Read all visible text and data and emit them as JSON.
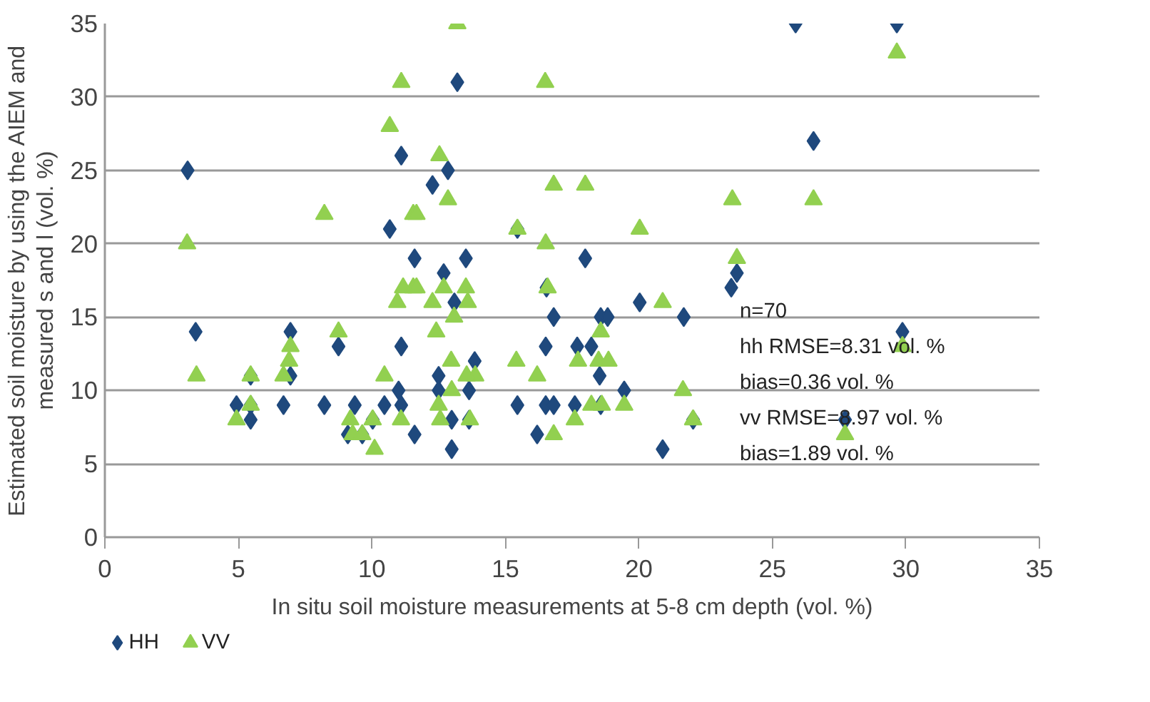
{
  "chart_data": {
    "type": "scatter",
    "xlabel": "In situ soil moisture measurements at 5-8 cm depth (vol. %)",
    "ylabel": "Estimated soil moisture by using the AIEM and measured s and l (vol. %)",
    "xlim": [
      0,
      35
    ],
    "ylim": [
      0,
      35
    ],
    "xticks": [
      0,
      5,
      10,
      15,
      20,
      25,
      30,
      35
    ],
    "yticks": [
      0,
      5,
      10,
      15,
      20,
      25,
      30,
      35
    ],
    "grid": "y",
    "legend": "bottom left",
    "annotations": [
      "n=70",
      "hh RMSE=8.31 vol. %",
      "bias=0.36 vol. %",
      "vv RMSE=8.97 vol. %",
      "bias=1.89 vol. %"
    ],
    "series": [
      {
        "name": "HH",
        "color": "#1f497d",
        "marker": "diamond",
        "x": [
          3.1,
          3.4,
          6.95,
          8.75,
          10.67,
          5.46,
          6.95,
          4.93,
          5.46,
          5.46,
          6.69,
          8.22,
          9.36,
          10.47,
          10.03,
          9.1,
          9.64,
          11.1,
          11.1,
          11.6,
          11.1,
          11.0,
          11.6,
          13.2,
          12.85,
          12.27,
          15.45,
          13.52,
          17.99,
          12.69,
          16.54,
          13.09,
          20.03,
          16.81,
          18.57,
          18.83,
          21.68,
          16.51,
          17.69,
          18.22,
          13.85,
          12.5,
          18.53,
          12.5,
          13.64,
          19.45,
          12.99,
          13.64,
          15.45,
          16.51,
          16.81,
          17.6,
          18.57,
          22.03,
          12.99,
          16.19,
          20.89,
          25.87,
          29.66,
          26.54,
          23.67,
          23.46,
          29.87,
          27.72
        ],
        "values": [
          25,
          14,
          14,
          13,
          21,
          11,
          11,
          9,
          9,
          8,
          9,
          9,
          9,
          9,
          8,
          7,
          7,
          26,
          13,
          19,
          9,
          10,
          7,
          31,
          25,
          24,
          21,
          19,
          19,
          18,
          17,
          16,
          16,
          15,
          15,
          15,
          15,
          13,
          13,
          13,
          12,
          11,
          11,
          10,
          10,
          10,
          8,
          8,
          9,
          9,
          9,
          9,
          9,
          8,
          6,
          7,
          6,
          35,
          35,
          27,
          18,
          17,
          14,
          8
        ]
      },
      {
        "name": "VV",
        "color": "#92d050",
        "marker": "triangle",
        "x": [
          11.1,
          10.67,
          8.22,
          3.08,
          11.55,
          11.17,
          10.95,
          11.55,
          3.43,
          8.75,
          6.95,
          6.9,
          6.69,
          5.46,
          5.46,
          4.93,
          10.47,
          9.19,
          9.28,
          9.64,
          10.03,
          10.1,
          11.09,
          13.2,
          16.49,
          12.53,
          12.85,
          16.81,
          17.99,
          11.67,
          15.45,
          20.03,
          16.51,
          11.67,
          12.69,
          13.52,
          16.58,
          12.27,
          13.59,
          20.89,
          13.08,
          12.41,
          18.57,
          12.97,
          13.87,
          13.55,
          15.41,
          16.19,
          17.72,
          18.49,
          18.86,
          12.99,
          12.5,
          12.56,
          13.67,
          16.81,
          17.6,
          18.22,
          18.61,
          19.45,
          21.65,
          22.03,
          29.66,
          23.5,
          26.54,
          23.67,
          29.87,
          27.72
        ],
        "values": [
          31,
          28,
          22,
          20,
          22,
          17,
          16,
          17,
          11,
          14,
          13,
          12,
          11,
          11,
          9,
          8,
          11,
          8,
          7,
          7,
          8,
          6,
          8,
          35,
          31,
          26,
          23,
          24,
          24,
          22,
          21,
          21,
          20,
          17,
          17,
          17,
          17,
          16,
          16,
          16,
          15,
          14,
          14,
          12,
          11,
          11,
          12,
          11,
          12,
          12,
          12,
          10,
          9,
          8,
          8,
          7,
          8,
          9,
          9,
          9,
          10,
          8,
          33,
          23,
          23,
          19,
          13,
          7
        ]
      }
    ]
  }
}
